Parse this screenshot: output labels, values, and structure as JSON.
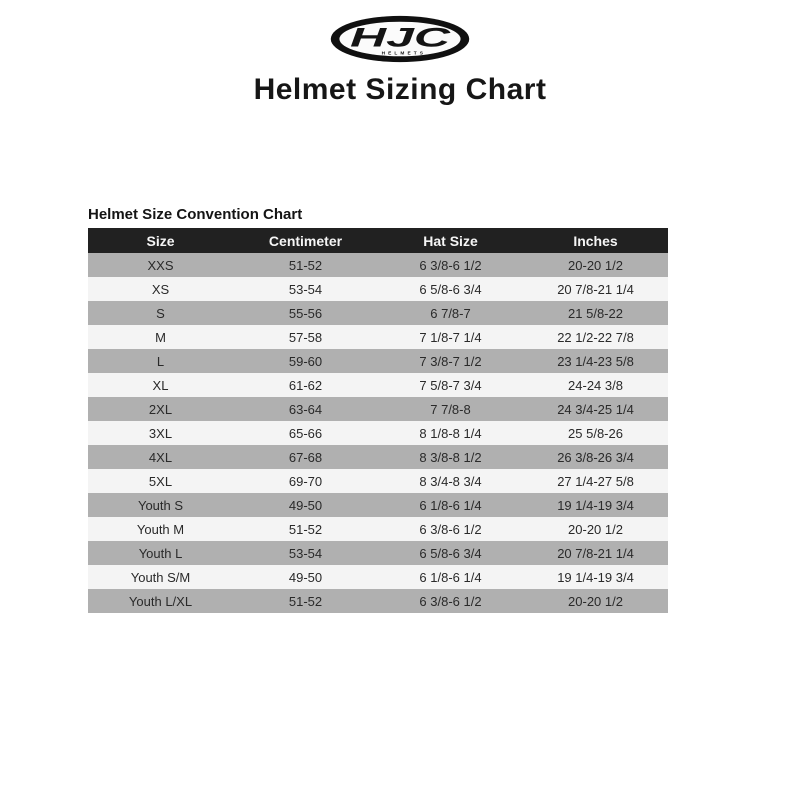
{
  "logo": {
    "brand": "HJC",
    "subtext": "HELMETS"
  },
  "page_title": "Helmet Sizing Chart",
  "chart_data": {
    "type": "table",
    "title": "Helmet Size Convention Chart",
    "columns": [
      "Size",
      "Centimeter",
      "Hat Size",
      "Inches"
    ],
    "rows": [
      [
        "XXS",
        "51-52",
        "6 3/8-6 1/2",
        "20-20 1/2"
      ],
      [
        "XS",
        "53-54",
        "6 5/8-6 3/4",
        "20 7/8-21 1/4"
      ],
      [
        "S",
        "55-56",
        "6 7/8-7",
        "21 5/8-22"
      ],
      [
        "M",
        "57-58",
        "7 1/8-7 1/4",
        "22 1/2-22 7/8"
      ],
      [
        "L",
        "59-60",
        "7 3/8-7 1/2",
        "23 1/4-23 5/8"
      ],
      [
        "XL",
        "61-62",
        "7 5/8-7 3/4",
        "24-24 3/8"
      ],
      [
        "2XL",
        "63-64",
        "7 7/8-8",
        "24 3/4-25 1/4"
      ],
      [
        "3XL",
        "65-66",
        "8 1/8-8 1/4",
        "25 5/8-26"
      ],
      [
        "4XL",
        "67-68",
        "8 3/8-8 1/2",
        "26 3/8-26 3/4"
      ],
      [
        "5XL",
        "69-70",
        "8 3/4-8 3/4",
        "27 1/4-27 5/8"
      ],
      [
        "Youth S",
        "49-50",
        "6 1/8-6 1/4",
        "19 1/4-19 3/4"
      ],
      [
        "Youth M",
        "51-52",
        "6 3/8-6 1/2",
        "20-20 1/2"
      ],
      [
        "Youth L",
        "53-54",
        "6 5/8-6 3/4",
        "20 7/8-21 1/4"
      ],
      [
        "Youth S/M",
        "49-50",
        "6 1/8-6 1/4",
        "19 1/4-19 3/4"
      ],
      [
        "Youth L/XL",
        "51-52",
        "6 3/8-6 1/2",
        "20-20 1/2"
      ]
    ],
    "layout": {
      "grid": false,
      "striped": true,
      "column_alignment": "center"
    }
  },
  "colors": {
    "header_bg": "#212121",
    "header_text": "#f5f5f5",
    "row_alt": "#b0b0b0",
    "row_base": "#f4f4f4"
  }
}
